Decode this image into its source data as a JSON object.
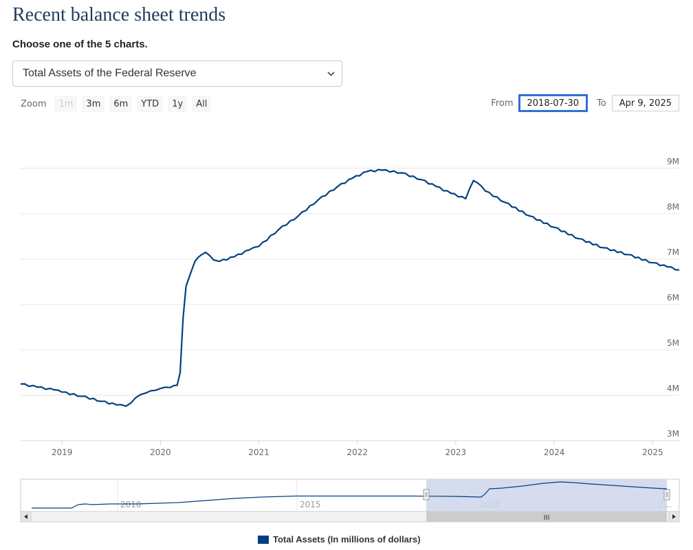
{
  "page": {
    "title": "Recent balance sheet trends",
    "subtitle": "Choose one of the 5 charts.",
    "selected_chart": "Total Assets of the Federal Reserve"
  },
  "zoom": {
    "label": "Zoom",
    "buttons": [
      {
        "label": "1m",
        "disabled": true
      },
      {
        "label": "3m",
        "disabled": false
      },
      {
        "label": "6m",
        "disabled": false
      },
      {
        "label": "YTD",
        "disabled": false
      },
      {
        "label": "1y",
        "disabled": false
      },
      {
        "label": "All",
        "disabled": false
      }
    ]
  },
  "range": {
    "from_label": "From",
    "from_value": "2018-07-30",
    "to_label": "To",
    "to_value": "Apr 9, 2025"
  },
  "legend": {
    "label": "Total Assets (In millions of dollars)"
  },
  "navigator": {
    "tick_labels": [
      "2010",
      "2015",
      "2020",
      "2..."
    ],
    "grip": "III"
  },
  "colors": {
    "series": "#003f7f",
    "grid": "#e6e6e6",
    "navigator_mask": "#ccd6eb"
  },
  "chart_data": {
    "type": "line",
    "title": "",
    "series_name": "Total Assets (In millions of dollars)",
    "ylabel": "",
    "y_tick_labels": [
      "3M",
      "4M",
      "5M",
      "6M",
      "7M",
      "8M",
      "9M"
    ],
    "y_ticks": [
      3000000,
      4000000,
      5000000,
      6000000,
      7000000,
      8000000,
      9000000
    ],
    "ylim": [
      3000000,
      9300000
    ],
    "x_tick_labels": [
      "2019",
      "2020",
      "2021",
      "2022",
      "2023",
      "2024",
      "2025"
    ],
    "x_ticks": [
      2019.0,
      2020.0,
      2021.0,
      2022.0,
      2023.0,
      2024.0,
      2025.0
    ],
    "xlim": [
      2018.58,
      2025.27
    ],
    "x": [
      2018.58,
      2018.75,
      2018.92,
      2019.0,
      2019.2,
      2019.4,
      2019.55,
      2019.65,
      2019.7,
      2019.75,
      2019.85,
      2019.95,
      2020.0,
      2020.1,
      2020.17,
      2020.2,
      2020.23,
      2020.26,
      2020.3,
      2020.35,
      2020.42,
      2020.46,
      2020.5,
      2020.54,
      2020.6,
      2020.75,
      2020.9,
      2021.0,
      2021.2,
      2021.4,
      2021.6,
      2021.8,
      2021.95,
      2022.1,
      2022.25,
      2022.45,
      2022.65,
      2022.8,
      2022.95,
      2023.1,
      2023.18,
      2023.22,
      2023.3,
      2023.5,
      2023.75,
      2024.0,
      2024.25,
      2024.5,
      2024.75,
      2025.0,
      2025.15,
      2025.27
    ],
    "values": [
      4250000,
      4180000,
      4120000,
      4070000,
      3980000,
      3870000,
      3790000,
      3760000,
      3830000,
      3950000,
      4050000,
      4110000,
      4150000,
      4170000,
      4220000,
      4500000,
      5700000,
      6400000,
      6650000,
      6950000,
      7100000,
      7150000,
      7080000,
      6980000,
      6950000,
      7050000,
      7200000,
      7280000,
      7650000,
      7950000,
      8300000,
      8600000,
      8780000,
      8930000,
      8960000,
      8900000,
      8750000,
      8600000,
      8450000,
      8330000,
      8730000,
      8680000,
      8500000,
      8250000,
      7950000,
      7700000,
      7450000,
      7250000,
      7100000,
      6920000,
      6830000,
      6760000
    ]
  }
}
